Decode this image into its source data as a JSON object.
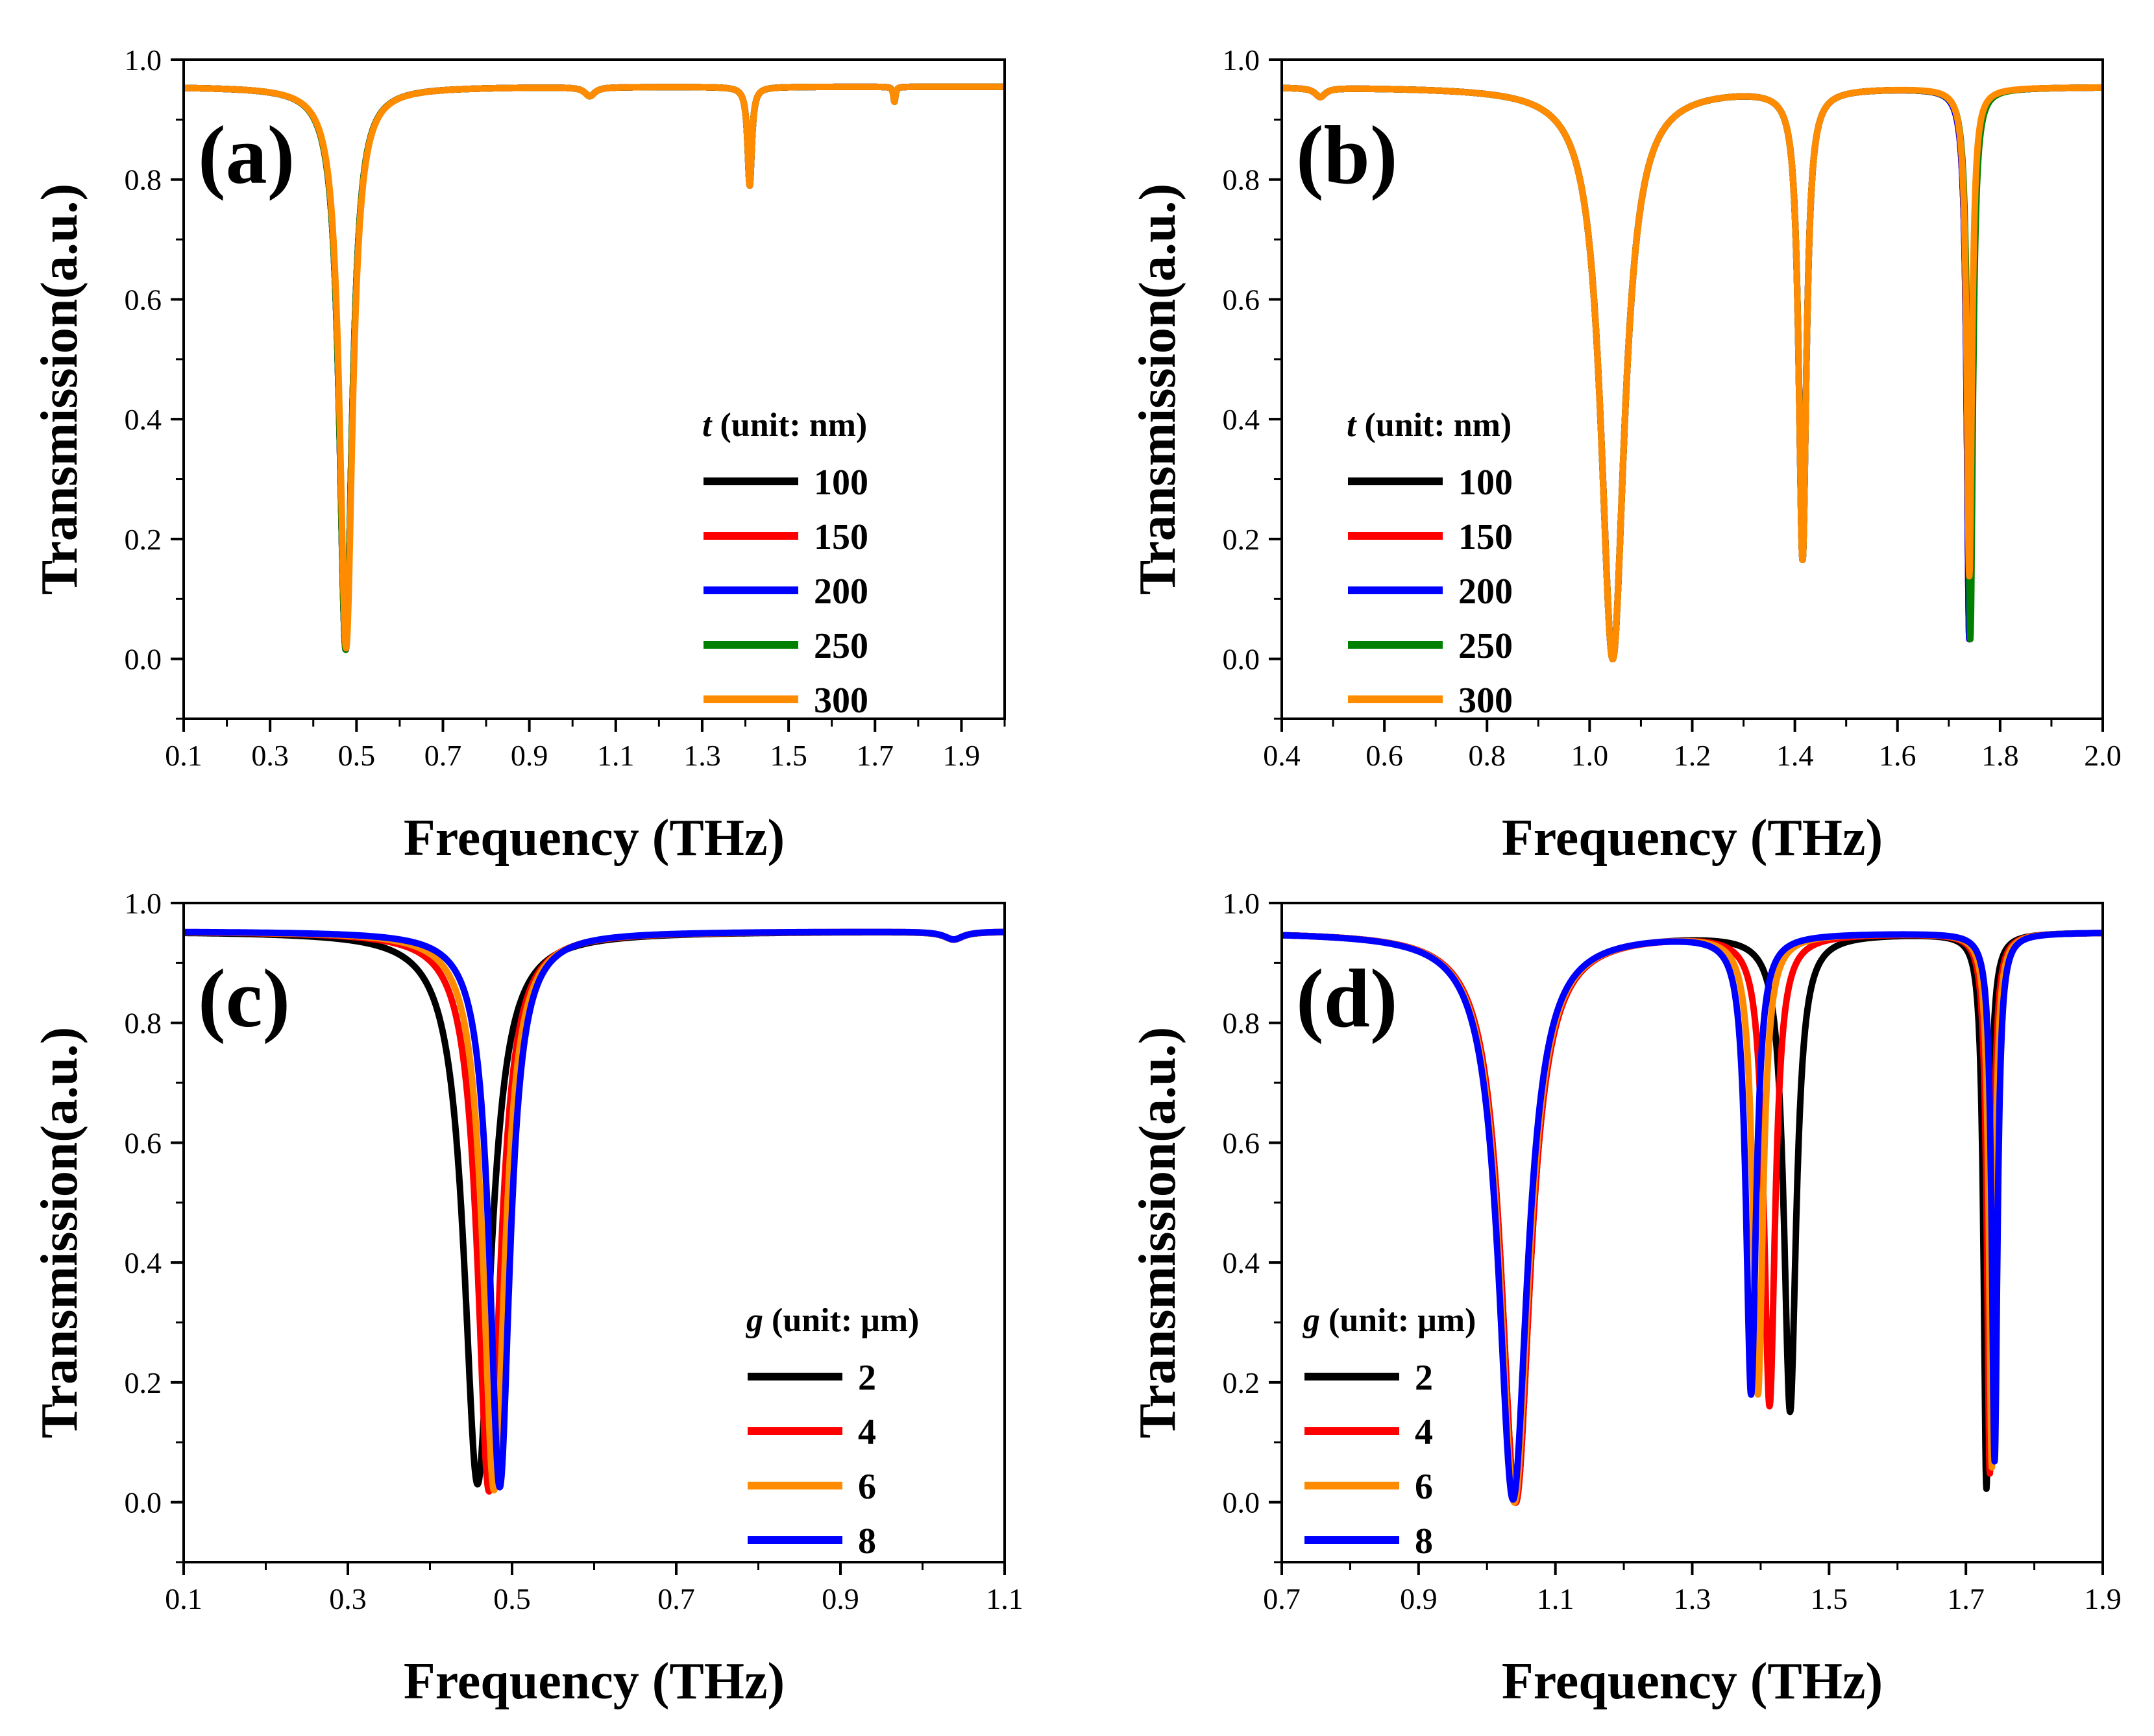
{
  "figure": {
    "panels": [
      "a",
      "b",
      "c",
      "d"
    ]
  },
  "chart_data": [
    {
      "id": "a",
      "type": "line",
      "panel_label": "(a)",
      "xlabel": "Frequency (THz)",
      "ylabel": "Transmission(a.u.)",
      "xlim": [
        0.1,
        2.0
      ],
      "ylim": [
        -0.1,
        1.0
      ],
      "xticks": [
        "0.1",
        "0.3",
        "0.5",
        "0.7",
        "0.9",
        "1.1",
        "1.3",
        "1.5",
        "1.7",
        "1.9"
      ],
      "xtick_values": [
        0.1,
        0.3,
        0.5,
        0.7,
        0.9,
        1.1,
        1.3,
        1.5,
        1.7,
        1.9
      ],
      "yticks": [
        "0.0",
        "0.2",
        "0.4",
        "0.6",
        "0.8",
        "1.0"
      ],
      "ytick_values": [
        0.0,
        0.2,
        0.4,
        0.6,
        0.8,
        1.0
      ],
      "legend_title_var": "t",
      "legend_title_rest": " (unit: nm)",
      "legend_position": "lower-right",
      "baseline": 0.955,
      "series": [
        {
          "name": "100",
          "color": "#000000",
          "dips": [
            [
              0.475,
              0.015,
              0.018
            ],
            [
              1.04,
              0.94,
              0.014
            ],
            [
              1.41,
              0.79,
              0.006
            ],
            [
              1.745,
              0.93,
              0.003
            ]
          ]
        },
        {
          "name": "150",
          "color": "#ff0000",
          "dips": [
            [
              0.475,
              0.015,
              0.018
            ],
            [
              1.04,
              0.94,
              0.014
            ],
            [
              1.41,
              0.79,
              0.006
            ],
            [
              1.745,
              0.93,
              0.003
            ]
          ]
        },
        {
          "name": "200",
          "color": "#0000ff",
          "dips": [
            [
              0.475,
              0.015,
              0.018
            ],
            [
              1.04,
              0.94,
              0.014
            ],
            [
              1.41,
              0.79,
              0.006
            ],
            [
              1.745,
              0.93,
              0.003
            ]
          ]
        },
        {
          "name": "250",
          "color": "#008000",
          "dips": [
            [
              0.475,
              0.015,
              0.018
            ],
            [
              1.04,
              0.94,
              0.014
            ],
            [
              1.41,
              0.79,
              0.006
            ],
            [
              1.745,
              0.93,
              0.003
            ]
          ]
        },
        {
          "name": "300",
          "color": "#ff8c00",
          "dips": [
            [
              0.476,
              0.018,
              0.018
            ],
            [
              1.04,
              0.94,
              0.014
            ],
            [
              1.41,
              0.79,
              0.006
            ],
            [
              1.745,
              0.93,
              0.003
            ]
          ]
        }
      ]
    },
    {
      "id": "b",
      "type": "line",
      "panel_label": "(b)",
      "xlabel": "Frequency (THz)",
      "ylabel": "Transmission(a.u.)",
      "xlim": [
        0.4,
        2.0
      ],
      "ylim": [
        -0.1,
        1.0
      ],
      "xticks": [
        "0.4",
        "0.6",
        "0.8",
        "1.0",
        "1.2",
        "1.4",
        "1.6",
        "1.8",
        "2.0"
      ],
      "xtick_values": [
        0.4,
        0.6,
        0.8,
        1.0,
        1.2,
        1.4,
        1.6,
        1.8,
        2.0
      ],
      "yticks": [
        "0.0",
        "0.2",
        "0.4",
        "0.6",
        "0.8",
        "1.0"
      ],
      "ytick_values": [
        0.0,
        0.2,
        0.4,
        0.6,
        0.8,
        1.0
      ],
      "legend_title_var": "t",
      "legend_title_rest": " (unit: nm)",
      "legend_position": "lower-left",
      "baseline": 0.955,
      "series": [
        {
          "name": "100",
          "color": "#000000",
          "dips": [
            [
              0.475,
              0.94,
              0.012
            ],
            [
              1.045,
              0.0,
              0.028
            ],
            [
              1.415,
              0.17,
              0.009
            ],
            [
              1.74,
              0.035,
              0.006
            ]
          ]
        },
        {
          "name": "150",
          "color": "#ff0000",
          "dips": [
            [
              0.475,
              0.94,
              0.012
            ],
            [
              1.045,
              0.0,
              0.028
            ],
            [
              1.415,
              0.17,
              0.009
            ],
            [
              1.74,
              0.035,
              0.006
            ]
          ]
        },
        {
          "name": "200",
          "color": "#0000ff",
          "dips": [
            [
              0.475,
              0.94,
              0.012
            ],
            [
              1.045,
              0.0,
              0.028
            ],
            [
              1.415,
              0.17,
              0.009
            ],
            [
              1.74,
              0.035,
              0.006
            ]
          ]
        },
        {
          "name": "250",
          "color": "#008000",
          "dips": [
            [
              0.475,
              0.94,
              0.012
            ],
            [
              1.045,
              0.0,
              0.028
            ],
            [
              1.415,
              0.17,
              0.009
            ],
            [
              1.742,
              0.035,
              0.006
            ]
          ]
        },
        {
          "name": "300",
          "color": "#ff8c00",
          "dips": [
            [
              0.475,
              0.94,
              0.012
            ],
            [
              1.045,
              0.0,
              0.028
            ],
            [
              1.415,
              0.17,
              0.009
            ],
            [
              1.74,
              0.14,
              0.006
            ]
          ]
        }
      ]
    },
    {
      "id": "c",
      "type": "line",
      "panel_label": "(c)",
      "xlabel": "Frequency (THz)",
      "ylabel": "Transmission(a.u.)",
      "xlim": [
        0.1,
        1.1
      ],
      "ylim": [
        -0.1,
        1.0
      ],
      "xticks": [
        "0.1",
        "0.3",
        "0.5",
        "0.7",
        "0.9",
        "1.1"
      ],
      "xtick_values": [
        0.1,
        0.3,
        0.5,
        0.7,
        0.9,
        1.1
      ],
      "yticks": [
        "0.0",
        "0.2",
        "0.4",
        "0.6",
        "0.8",
        "1.0"
      ],
      "ytick_values": [
        0.0,
        0.2,
        0.4,
        0.6,
        0.8,
        1.0
      ],
      "legend_title_var": "g",
      "legend_title_rest": " (unit: μm)",
      "legend_position": "lower-right",
      "baseline": 0.953,
      "series": [
        {
          "name": "2",
          "color": "#000000",
          "dips": [
            [
              0.458,
              0.03,
              0.02
            ],
            [
              1.038,
              0.94,
              0.014
            ]
          ]
        },
        {
          "name": "4",
          "color": "#ff0000",
          "dips": [
            [
              0.472,
              0.018,
              0.017
            ],
            [
              1.038,
              0.94,
              0.014
            ]
          ]
        },
        {
          "name": "6",
          "color": "#ff8c00",
          "dips": [
            [
              0.478,
              0.02,
              0.016
            ],
            [
              1.038,
              0.94,
              0.014
            ]
          ]
        },
        {
          "name": "8",
          "color": "#0000ff",
          "dips": [
            [
              0.485,
              0.025,
              0.015
            ],
            [
              1.038,
              0.94,
              0.014
            ]
          ]
        }
      ]
    },
    {
      "id": "d",
      "type": "line",
      "panel_label": "(d)",
      "xlabel": "Frequency (THz)",
      "ylabel": "Transmission(a.u.)",
      "xlim": [
        0.7,
        1.9
      ],
      "ylim": [
        -0.1,
        1.0
      ],
      "xticks": [
        "0.7",
        "0.9",
        "1.1",
        "1.3",
        "1.5",
        "1.7",
        "1.9"
      ],
      "xtick_values": [
        0.7,
        0.9,
        1.1,
        1.3,
        1.5,
        1.7,
        1.9
      ],
      "yticks": [
        "0.0",
        "0.2",
        "0.4",
        "0.6",
        "0.8",
        "1.0"
      ],
      "ytick_values": [
        0.0,
        0.2,
        0.4,
        0.6,
        0.8,
        1.0
      ],
      "legend_title_var": "g",
      "legend_title_rest": " (unit: μm)",
      "legend_position": "lower-left",
      "baseline": 0.952,
      "series": [
        {
          "name": "2",
          "color": "#000000",
          "dips": [
            [
              1.042,
              0.0,
              0.026
            ],
            [
              1.443,
              0.155,
              0.011
            ],
            [
              1.73,
              0.025,
              0.005
            ]
          ]
        },
        {
          "name": "4",
          "color": "#ff0000",
          "dips": [
            [
              1.042,
              0.0,
              0.026
            ],
            [
              1.413,
              0.165,
              0.01
            ],
            [
              1.735,
              0.05,
              0.005
            ]
          ]
        },
        {
          "name": "6",
          "color": "#ff8c00",
          "dips": [
            [
              1.04,
              0.0,
              0.026
            ],
            [
              1.396,
              0.185,
              0.009
            ],
            [
              1.738,
              0.06,
              0.005
            ]
          ]
        },
        {
          "name": "8",
          "color": "#0000ff",
          "dips": [
            [
              1.038,
              0.005,
              0.026
            ],
            [
              1.386,
              0.185,
              0.009
            ],
            [
              1.742,
              0.07,
              0.005
            ]
          ]
        }
      ]
    }
  ]
}
